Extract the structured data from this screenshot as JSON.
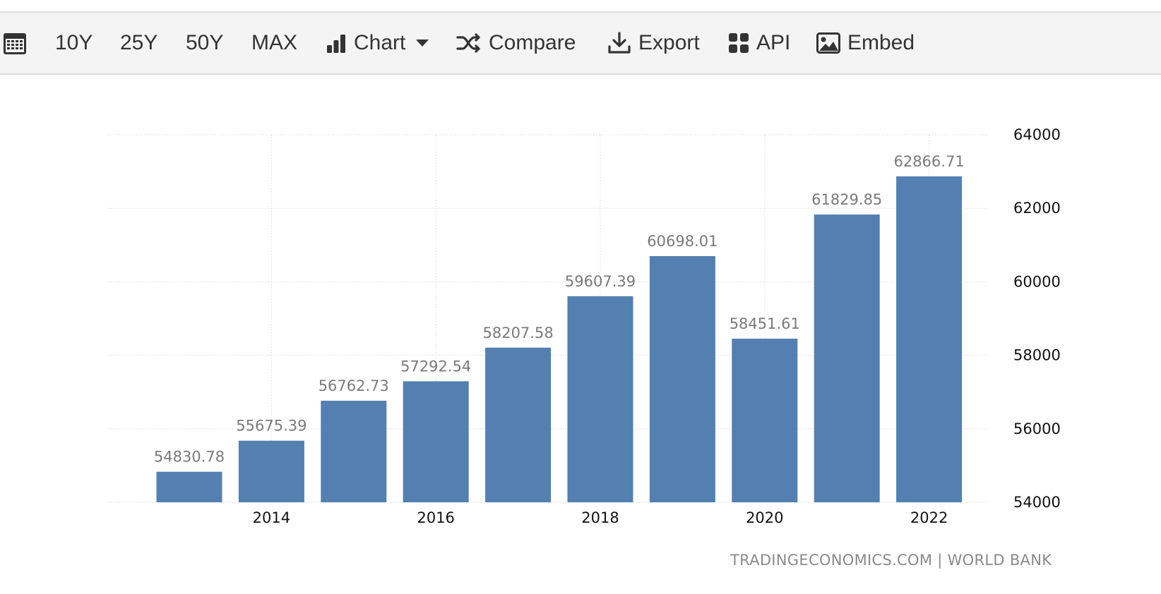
{
  "toolbar": {
    "calendar_icon": "calendar-icon",
    "range_10y": "10Y",
    "range_25y": "25Y",
    "range_50y": "50Y",
    "range_max": "MAX",
    "chart_label": "Chart",
    "compare_label": "Compare",
    "export_label": "Export",
    "api_label": "API",
    "embed_label": "Embed"
  },
  "colors": {
    "bar": "#5380b0",
    "grid": "#e2e2e2"
  },
  "source": "TRADINGECONOMICS.COM | WORLD BANK",
  "chart_data": {
    "type": "bar",
    "x": [
      2013,
      2014,
      2015,
      2016,
      2017,
      2018,
      2019,
      2020,
      2021,
      2022
    ],
    "values": [
      54830.78,
      55675.39,
      56762.73,
      57292.54,
      58207.58,
      59607.39,
      60698.01,
      58451.61,
      61829.85,
      62866.71
    ],
    "value_labels": [
      "54830.78",
      "55675.39",
      "56762.73",
      "57292.54",
      "58207.58",
      "59607.39",
      "60698.01",
      "58451.61",
      "61829.85",
      "62866.71"
    ],
    "x_ticks": [
      "2014",
      "2016",
      "2018",
      "2020",
      "2022"
    ],
    "x_tick_values": [
      2014,
      2016,
      2018,
      2020,
      2022
    ],
    "y_ticks": [
      54000,
      56000,
      58000,
      60000,
      62000,
      64000
    ],
    "ylim": [
      54000,
      64000
    ],
    "y_axis_side": "right",
    "grid": true,
    "title": "",
    "xlabel": "",
    "ylabel": ""
  }
}
